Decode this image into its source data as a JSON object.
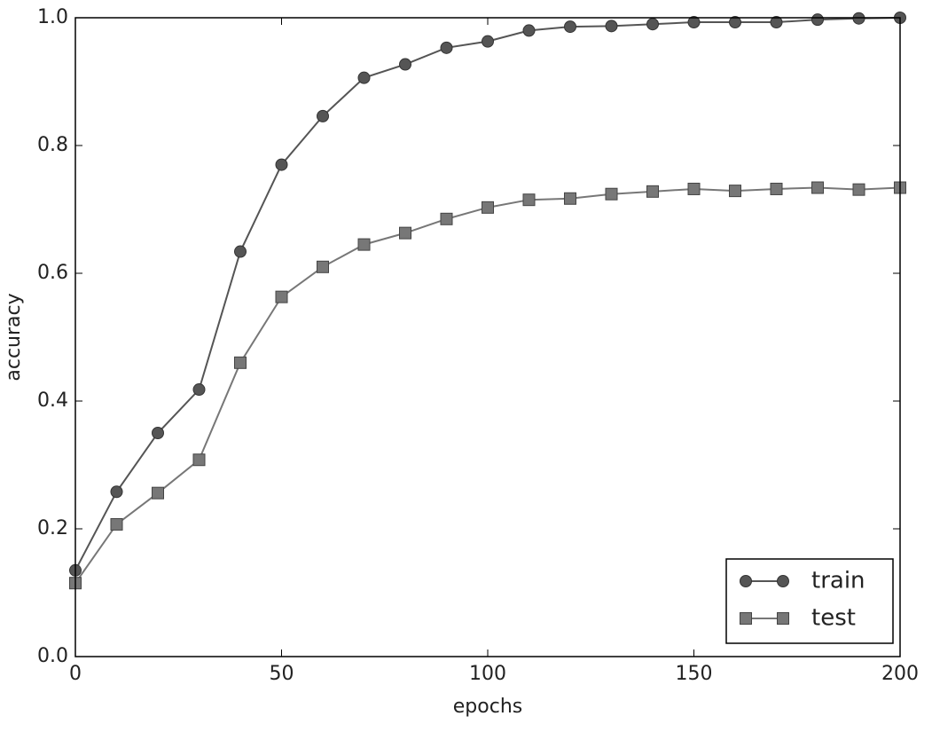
{
  "chart_data": {
    "type": "line",
    "xlabel": "epochs",
    "ylabel": "accuracy",
    "x": [
      0,
      10,
      20,
      30,
      40,
      50,
      60,
      70,
      80,
      90,
      100,
      110,
      120,
      130,
      140,
      150,
      160,
      170,
      180,
      190,
      200
    ],
    "series": [
      {
        "name": "train",
        "color": "#555555",
        "marker": "circle",
        "values": [
          0.135,
          0.258,
          0.35,
          0.418,
          0.634,
          0.77,
          0.846,
          0.906,
          0.927,
          0.953,
          0.963,
          0.98,
          0.986,
          0.987,
          0.99,
          0.993,
          0.993,
          0.993,
          0.997,
          0.999,
          1.0
        ]
      },
      {
        "name": "test",
        "color": "#777777",
        "marker": "square",
        "values": [
          0.115,
          0.207,
          0.256,
          0.308,
          0.46,
          0.563,
          0.61,
          0.645,
          0.663,
          0.685,
          0.703,
          0.715,
          0.717,
          0.724,
          0.728,
          0.732,
          0.729,
          0.732,
          0.734,
          0.731,
          0.734
        ]
      }
    ],
    "xlim": [
      0,
      200
    ],
    "xticks": [
      0,
      50,
      100,
      150,
      200
    ],
    "ylim": [
      0,
      1
    ],
    "yticks": [
      {
        "value": 0,
        "label": "0.0"
      },
      0.2,
      0.4,
      0.6,
      0.8,
      {
        "value": 1,
        "label": "1.0"
      }
    ],
    "legend": "lower right",
    "grid": false
  }
}
